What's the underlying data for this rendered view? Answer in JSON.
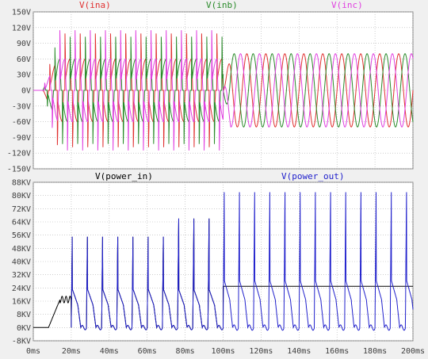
{
  "chart_data": [
    {
      "type": "line",
      "panel": "top",
      "xlabel": "",
      "ylabel": "",
      "xlim": [
        0,
        200
      ],
      "ylim": [
        -150,
        150
      ],
      "grid": true,
      "legend": "top",
      "x_ticks": [
        "0ms",
        "20ms",
        "40ms",
        "60ms",
        "80ms",
        "100ms",
        "120ms",
        "140ms",
        "160ms",
        "180ms",
        "200ms"
      ],
      "y_ticks": [
        "150V",
        "120V",
        "90V",
        "60V",
        "30V",
        "0V",
        "-30V",
        "-60V",
        "-90V",
        "-120V",
        "-150V"
      ],
      "y_tick_values": [
        150,
        120,
        90,
        60,
        30,
        0,
        -30,
        -60,
        -90,
        -120,
        -150
      ],
      "series": [
        {
          "name": "V(ina)",
          "color": "#e03030",
          "phase": 0
        },
        {
          "name": "V(inb)",
          "color": "#2a8a2a",
          "phase": 1
        },
        {
          "name": "V(inc)",
          "color": "#e040e0",
          "phase": 2
        }
      ],
      "notes_values": {
        "spike_peak_V": 120,
        "clamp_level_V": 60,
        "post_100ms_amplitude_V": 70,
        "post_100ms_frequency_Hz": 100,
        "pre_100ms_frequency_Hz": 125
      }
    },
    {
      "type": "line",
      "panel": "bottom",
      "xlabel": "",
      "ylabel": "",
      "xlim": [
        0,
        200
      ],
      "ylim": [
        -8,
        88
      ],
      "grid": true,
      "legend": "top",
      "x_ticks": [
        "0ms",
        "20ms",
        "40ms",
        "60ms",
        "80ms",
        "100ms",
        "120ms",
        "140ms",
        "160ms",
        "180ms",
        "200ms"
      ],
      "y_ticks": [
        "88KV",
        "80KV",
        "72KV",
        "64KV",
        "56KV",
        "48KV",
        "40KV",
        "32KV",
        "24KV",
        "16KV",
        "8KV",
        "0KV",
        "-8KV"
      ],
      "y_tick_values": [
        88,
        80,
        72,
        64,
        56,
        48,
        40,
        32,
        24,
        16,
        8,
        0,
        -8
      ],
      "series": [
        {
          "name": "V(power_in)",
          "color": "#000000"
        },
        {
          "name": "V(power_out)",
          "color": "#2020cc"
        }
      ],
      "notes_values": {
        "power_in_steady_after_100ms_KV": 25,
        "power_out_peak_after_100ms_KV": 82,
        "power_out_peak_before_100ms_KV": 66
      }
    }
  ]
}
